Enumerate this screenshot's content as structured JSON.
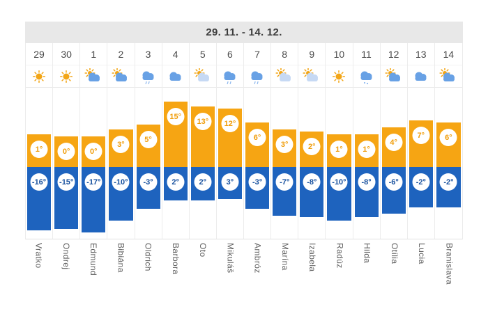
{
  "header": {
    "date_range": "29. 11. - 14. 12."
  },
  "chart_data": {
    "type": "bar",
    "title": "29. 11. - 14. 12.",
    "categories": [
      "29",
      "30",
      "1",
      "2",
      "3",
      "4",
      "5",
      "6",
      "7",
      "8",
      "9",
      "10",
      "11",
      "12",
      "13",
      "14"
    ],
    "name_days": [
      "Vratko",
      "Ondrej",
      "Edmund",
      "Bibiána",
      "Oldrich",
      "Barbora",
      "Oto",
      "Mikuláš",
      "Ambróz",
      "Marína",
      "Izabela",
      "Radúz",
      "Hilda",
      "Otília",
      "Lucia",
      "Branislava"
    ],
    "series": [
      {
        "name": "high-temperature",
        "values": [
          1,
          0,
          0,
          3,
          5,
          15,
          13,
          12,
          6,
          3,
          2,
          1,
          1,
          4,
          7,
          6
        ]
      },
      {
        "name": "low-temperature",
        "values": [
          -16,
          -15,
          -17,
          -10,
          -3,
          2,
          2,
          3,
          -3,
          -7,
          -8,
          -10,
          -8,
          -6,
          -2,
          -2
        ]
      }
    ],
    "unit": "°",
    "icons": [
      "sun",
      "sun",
      "sun-cloud",
      "sun-cloud",
      "cloud-rain",
      "cloud",
      "sun-cloud-light",
      "cloud-rain",
      "cloud-rain",
      "sun-cloud-light",
      "sun-cloud-light",
      "sun",
      "cloud-snow",
      "sun-cloud",
      "cloud",
      "sun-cloud"
    ],
    "legend": [],
    "grid": true
  },
  "colors": {
    "high_bar": "#f6a513",
    "high_text": "#f09d0a",
    "low_bar": "#1e63be",
    "low_text": "#17509e",
    "header_bg": "#e8e8e8",
    "header_text": "#3c3c3c",
    "day_text": "#4a4a4a",
    "name_text": "#5f5f5f",
    "icon_sun": "#f2a516",
    "icon_cloud": "#68a1e5",
    "icon_cloud_light": "#c6d9f4",
    "icon_precip": "#8fb9ee",
    "grid_line": "#ececec"
  }
}
